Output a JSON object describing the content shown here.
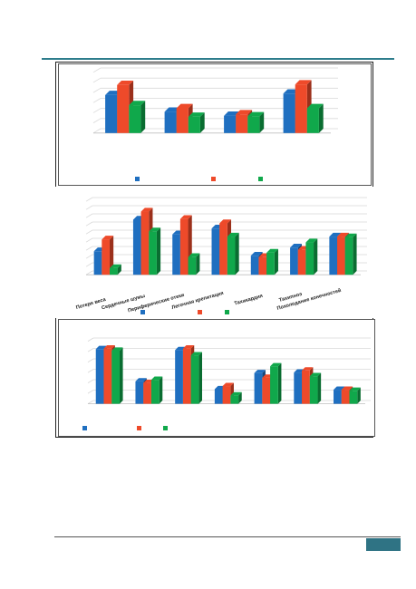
{
  "colors": {
    "series_1": "#1f6fc0",
    "series_2": "#ee4a2a",
    "series_3": "#10a84b",
    "grid": "#d9d9d9",
    "rule": "#2e7d8c",
    "page_tab": "#2f7384"
  },
  "chart_data": [
    {
      "type": "bar",
      "style": "3d-clustered",
      "categories": [
        "",
        "",
        "",
        ""
      ],
      "series": [
        {
          "values": [
            7.5,
            4.2,
            3.4,
            7.8
          ]
        },
        {
          "values": [
            9.5,
            4.9,
            3.7,
            9.6
          ]
        },
        {
          "values": [
            5.5,
            3.2,
            3.3,
            4.9
          ]
        }
      ],
      "ylim": [
        0,
        12
      ],
      "grid": true,
      "legend": "bottom"
    },
    {
      "type": "bar",
      "style": "3d-clustered",
      "categories": [
        "Потеря веса",
        "Сердечные шумы",
        "Периферические отеки",
        "Легочная крепитация",
        "Тахикардия",
        "Тахипноэ",
        "Похолодание конечностей"
      ],
      "series": [
        {
          "values": [
            3.2,
            7.5,
            5.5,
            6.3,
            2.6,
            3.7,
            5.2
          ]
        },
        {
          "values": [
            4.8,
            8.6,
            7.6,
            7.0,
            2.4,
            3.4,
            5.2
          ]
        },
        {
          "values": [
            0.9,
            5.9,
            2.4,
            5.2,
            3.0,
            4.4,
            5.1
          ]
        }
      ],
      "ylim": [
        0,
        10
      ],
      "grid": true,
      "legend": "bottom"
    },
    {
      "type": "bar",
      "style": "3d-clustered",
      "categories": [
        "",
        "",
        "",
        "",
        "",
        "",
        ""
      ],
      "series": [
        {
          "values": [
            10.5,
            4.3,
            10.3,
            2.8,
            5.9,
            6.0,
            2.7
          ]
        },
        {
          "values": [
            10.6,
            4.0,
            10.6,
            3.4,
            5.0,
            6.4,
            2.7
          ]
        },
        {
          "values": [
            10.2,
            4.6,
            9.3,
            1.6,
            7.2,
            5.3,
            2.5
          ]
        }
      ],
      "ylim": [
        0,
        12
      ],
      "grid": true,
      "legend": "bottom"
    }
  ]
}
